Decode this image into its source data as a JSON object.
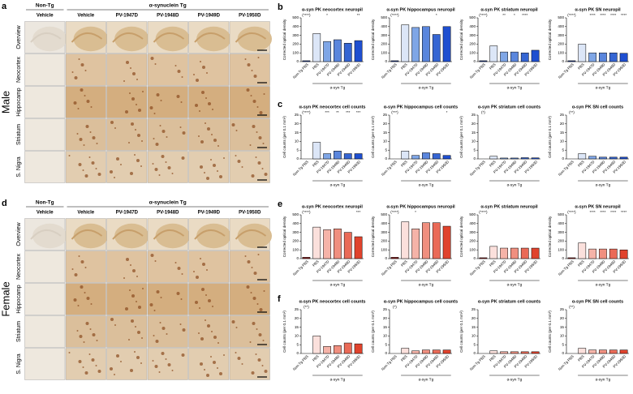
{
  "histology": [
    {
      "label": "a",
      "sex": "Male",
      "group_headers": [
        "Non-Tg",
        "α-synuclein Tg"
      ],
      "columns": [
        "Vehicle",
        "Vehicle",
        "PV-1947D",
        "PV-1948D",
        "PV-1949D",
        "PV-1950D"
      ],
      "rows": [
        "Overview",
        "Neocortex",
        "Hippocamp",
        "Striatum",
        "S. Nigra"
      ]
    },
    {
      "label": "d",
      "sex": "Female",
      "group_headers": [
        "Non-Tg",
        "α-synuclein Tg"
      ],
      "columns": [
        "Vehicle",
        "Vehicle",
        "PV-1947D",
        "PV-1948D",
        "PV-1949D",
        "PV-1950D"
      ],
      "rows": [
        "Overview",
        "Neocortex",
        "Hippocamp",
        "Striatum",
        "S. Nigra"
      ]
    }
  ],
  "chart_row_labels": [
    "b",
    "c",
    "e",
    "f"
  ],
  "chart_data": [
    {
      "type": "bar",
      "title": "α-syn PK neocortex neuropil",
      "ylabel": "Corrected optical density",
      "xlabel": "α-syn Tg",
      "categories": [
        "Non-Tg PBS",
        "PBS",
        "PV-1947D",
        "PV-1948D",
        "PV-1949D",
        "PV-1950D"
      ],
      "values": [
        10,
        320,
        230,
        250,
        210,
        240
      ],
      "annotations": [
        "(****)",
        null,
        "*",
        null,
        null,
        "**"
      ],
      "colors": [
        "#1f3a93",
        "#dce6f7",
        "#7fa6e6",
        "#5a86dd",
        "#3565d3",
        "#1f4fd0"
      ],
      "ylim": [
        0,
        500
      ],
      "yticks": [
        0,
        100,
        200,
        300,
        400,
        500
      ]
    },
    {
      "type": "bar",
      "title": "α-syn PK hippocampus neuropil",
      "ylabel": "Corrected optical density",
      "xlabel": "α-syn Tg",
      "categories": [
        "Non-Tg PBS",
        "PBS",
        "PV-1947D",
        "PV-1948D",
        "PV-1949D",
        "PV-1950D"
      ],
      "values": [
        10,
        420,
        390,
        400,
        310,
        400
      ],
      "annotations": [
        "(****)",
        null,
        null,
        null,
        "*",
        null
      ],
      "colors": [
        "#1f3a93",
        "#dce6f7",
        "#7fa6e6",
        "#5a86dd",
        "#3565d3",
        "#1f4fd0"
      ],
      "ylim": [
        0,
        500
      ],
      "yticks": [
        0,
        100,
        200,
        300,
        400,
        500
      ]
    },
    {
      "type": "bar",
      "title": "α-syn PK striatum neuropil",
      "ylabel": "Corrected optical density",
      "xlabel": "α-syn Tg",
      "categories": [
        "Non-Tg PBS",
        "PBS",
        "PV-1947D",
        "PV-1948D",
        "PV-1949D",
        "PV-1950D"
      ],
      "values": [
        10,
        180,
        110,
        110,
        100,
        130
      ],
      "annotations": [
        "(****)",
        null,
        "**",
        "*",
        "****",
        null
      ],
      "colors": [
        "#1f3a93",
        "#dce6f7",
        "#7fa6e6",
        "#5a86dd",
        "#3565d3",
        "#1f4fd0"
      ],
      "ylim": [
        0,
        500
      ],
      "yticks": [
        0,
        100,
        200,
        300,
        400,
        500
      ]
    },
    {
      "type": "bar",
      "title": "α-syn PK SN neuropil",
      "ylabel": "Corrected optical density",
      "xlabel": "α-syn Tg",
      "categories": [
        "Non-Tg PBS",
        "PBS",
        "PV-1947D",
        "PV-1948D",
        "PV-1949D",
        "PV-1950D"
      ],
      "values": [
        10,
        200,
        100,
        100,
        100,
        95
      ],
      "annotations": [
        "(****)",
        null,
        "****",
        "****",
        "****",
        "****"
      ],
      "colors": [
        "#1f3a93",
        "#dce6f7",
        "#7fa6e6",
        "#5a86dd",
        "#3565d3",
        "#1f4fd0"
      ],
      "ylim": [
        0,
        500
      ],
      "yticks": [
        0,
        100,
        200,
        300,
        400,
        500
      ]
    },
    {
      "type": "bar",
      "title": "α-syn PK neocortex cell counts",
      "ylabel": "Cell counts (per 0.1 mm²)",
      "xlabel": "α-syn Tg",
      "categories": [
        "Non-Tg PBS",
        "PBS",
        "PV-1947D",
        "PV-1948D",
        "PV-1949D",
        "PV-1950D"
      ],
      "values": [
        0,
        9.5,
        3,
        4.5,
        3,
        3
      ],
      "annotations": [
        "(****)",
        null,
        "***",
        "**",
        "***",
        "***"
      ],
      "colors": [
        "#1f3a93",
        "#dce6f7",
        "#7fa6e6",
        "#5a86dd",
        "#3565d3",
        "#1f4fd0"
      ],
      "ylim": [
        0,
        25
      ],
      "yticks": [
        0,
        5,
        10,
        15,
        20,
        25
      ]
    },
    {
      "type": "bar",
      "title": "α-syn PK hippocampus cell counts",
      "ylabel": "Cell counts (per 0.1 mm²)",
      "xlabel": "α-syn Tg",
      "categories": [
        "Non-Tg PBS",
        "PBS",
        "PV-1947D",
        "PV-1948D",
        "PV-1949D",
        "PV-1950D"
      ],
      "values": [
        0,
        4.5,
        2,
        3.5,
        3,
        2
      ],
      "annotations": [
        "(***)",
        null,
        null,
        null,
        null,
        "*"
      ],
      "colors": [
        "#1f3a93",
        "#dce6f7",
        "#7fa6e6",
        "#5a86dd",
        "#3565d3",
        "#1f4fd0"
      ],
      "ylim": [
        0,
        25
      ],
      "yticks": [
        0,
        5,
        10,
        15,
        20,
        25
      ]
    },
    {
      "type": "bar",
      "title": "α-syn PK striatum cell counts",
      "ylabel": "Cell counts (per 0.1 mm²)",
      "xlabel": "α-syn Tg",
      "categories": [
        "Non-Tg PBS",
        "PBS",
        "PV-1947D",
        "PV-1948D",
        "PV-1949D",
        "PV-1950D"
      ],
      "values": [
        0,
        1.5,
        0.5,
        0.5,
        0.7,
        0.6
      ],
      "annotations": [
        "(*)",
        null,
        null,
        null,
        null,
        null
      ],
      "colors": [
        "#1f3a93",
        "#dce6f7",
        "#7fa6e6",
        "#5a86dd",
        "#3565d3",
        "#1f4fd0"
      ],
      "ylim": [
        0,
        25
      ],
      "yticks": [
        0,
        5,
        10,
        15,
        20,
        25
      ]
    },
    {
      "type": "bar",
      "title": "α-syn PK SN cell counts",
      "ylabel": "Cell counts (per 0.1 mm²)",
      "xlabel": "α-syn Tg",
      "categories": [
        "Non-Tg PBS",
        "PBS",
        "PV-1947D",
        "PV-1948D",
        "PV-1949D",
        "PV-1950D"
      ],
      "values": [
        0,
        3,
        1.5,
        1,
        1,
        1
      ],
      "annotations": [
        "(**)",
        null,
        null,
        null,
        null,
        null
      ],
      "colors": [
        "#1f3a93",
        "#dce6f7",
        "#7fa6e6",
        "#5a86dd",
        "#3565d3",
        "#1f4fd0"
      ],
      "ylim": [
        0,
        25
      ],
      "yticks": [
        0,
        5,
        10,
        15,
        20,
        25
      ]
    },
    {
      "type": "bar",
      "title": "α-syn PK neocortex neuropil",
      "ylabel": "Corrected optical density",
      "xlabel": "α-syn Tg",
      "categories": [
        "Non-Tg PBS",
        "PBS",
        "PV-1947D",
        "PV-1948D",
        "PV-1949D",
        "PV-1950D"
      ],
      "values": [
        15,
        360,
        330,
        340,
        300,
        250
      ],
      "annotations": [
        "(****)",
        null,
        null,
        null,
        null,
        "***"
      ],
      "colors": [
        "#8b1a1a",
        "#fbe0dc",
        "#f5b3a8",
        "#f08f7f",
        "#ea6a57",
        "#e0432d"
      ],
      "ylim": [
        0,
        500
      ],
      "yticks": [
        0,
        100,
        200,
        300,
        400,
        500
      ]
    },
    {
      "type": "bar",
      "title": "α-syn PK hippocampus neuropil",
      "ylabel": "Corrected optical density",
      "xlabel": "α-syn Tg",
      "categories": [
        "Non-Tg PBS",
        "PBS",
        "PV-1947D",
        "PV-1948D",
        "PV-1949D",
        "PV-1950D"
      ],
      "values": [
        15,
        420,
        340,
        410,
        410,
        370
      ],
      "annotations": [
        "(****)",
        null,
        "*",
        null,
        null,
        null
      ],
      "colors": [
        "#8b1a1a",
        "#fbe0dc",
        "#f5b3a8",
        "#f08f7f",
        "#ea6a57",
        "#e0432d"
      ],
      "ylim": [
        0,
        500
      ],
      "yticks": [
        0,
        100,
        200,
        300,
        400,
        500
      ]
    },
    {
      "type": "bar",
      "title": "α-syn PK striatum neuropil",
      "ylabel": "Corrected optical density",
      "xlabel": "α-syn Tg",
      "categories": [
        "Non-Tg PBS",
        "PBS",
        "PV-1947D",
        "PV-1948D",
        "PV-1949D",
        "PV-1950D"
      ],
      "values": [
        10,
        140,
        120,
        120,
        120,
        120
      ],
      "annotations": [
        "(****)",
        null,
        null,
        null,
        null,
        null
      ],
      "colors": [
        "#8b1a1a",
        "#fbe0dc",
        "#f5b3a8",
        "#f08f7f",
        "#ea6a57",
        "#e0432d"
      ],
      "ylim": [
        0,
        500
      ],
      "yticks": [
        0,
        100,
        200,
        300,
        400,
        500
      ]
    },
    {
      "type": "bar",
      "title": "α-syn PK SN neuropil",
      "ylabel": "Corrected optical density",
      "xlabel": "α-syn Tg",
      "categories": [
        "Non-Tg PBS",
        "PBS",
        "PV-1947D",
        "PV-1948D",
        "PV-1949D",
        "PV-1950D"
      ],
      "values": [
        10,
        180,
        110,
        110,
        110,
        100
      ],
      "annotations": [
        "(****)",
        null,
        "****",
        "****",
        "****",
        "****"
      ],
      "colors": [
        "#8b1a1a",
        "#fbe0dc",
        "#f5b3a8",
        "#f08f7f",
        "#ea6a57",
        "#e0432d"
      ],
      "ylim": [
        0,
        500
      ],
      "yticks": [
        0,
        100,
        200,
        300,
        400,
        500
      ]
    },
    {
      "type": "bar",
      "title": "α-syn PK neocortex cell counts",
      "ylabel": "Cell counts (per 0.1 mm²)",
      "xlabel": "α-syn Tg",
      "categories": [
        "Non-Tg PBS",
        "PBS",
        "PV-1947D",
        "PV-1948D",
        "PV-1949D",
        "PV-1950D"
      ],
      "values": [
        0,
        10,
        4,
        4.5,
        6,
        5.5
      ],
      "annotations": [
        "(**)",
        null,
        null,
        null,
        null,
        null
      ],
      "colors": [
        "#8b1a1a",
        "#fbe0dc",
        "#f5b3a8",
        "#f08f7f",
        "#ea6a57",
        "#e0432d"
      ],
      "ylim": [
        0,
        25
      ],
      "yticks": [
        0,
        5,
        10,
        15,
        20,
        25
      ]
    },
    {
      "type": "bar",
      "title": "α-syn PK hippocampus cell counts",
      "ylabel": "Cell counts (per 0.1 mm²)",
      "xlabel": "α-syn Tg",
      "categories": [
        "Non-Tg PBS",
        "PBS",
        "PV-1947D",
        "PV-1948D",
        "PV-1949D",
        "PV-1950D"
      ],
      "values": [
        0,
        3,
        1.5,
        2,
        2,
        2
      ],
      "annotations": [
        "(*)",
        null,
        null,
        null,
        null,
        null
      ],
      "colors": [
        "#8b1a1a",
        "#fbe0dc",
        "#f5b3a8",
        "#f08f7f",
        "#ea6a57",
        "#e0432d"
      ],
      "ylim": [
        0,
        25
      ],
      "yticks": [
        0,
        5,
        10,
        15,
        20,
        25
      ]
    },
    {
      "type": "bar",
      "title": "α-syn PK striatum cell counts",
      "ylabel": "Cell counts (per 0.1 mm²)",
      "xlabel": "α-syn Tg",
      "categories": [
        "Non-Tg PBS",
        "PBS",
        "PV-1947D",
        "PV-1948D",
        "PV-1949D",
        "PV-1950D"
      ],
      "values": [
        0,
        1.5,
        1,
        1,
        1,
        1
      ],
      "annotations": [
        null,
        null,
        null,
        null,
        null,
        null
      ],
      "colors": [
        "#8b1a1a",
        "#fbe0dc",
        "#f5b3a8",
        "#f08f7f",
        "#ea6a57",
        "#e0432d"
      ],
      "ylim": [
        0,
        25
      ],
      "yticks": [
        0,
        5,
        10,
        15,
        20,
        25
      ]
    },
    {
      "type": "bar",
      "title": "α-syn PK SN cell counts",
      "ylabel": "Cell counts (per 0.1 mm²)",
      "xlabel": "α-syn Tg",
      "categories": [
        "Non-Tg PBS",
        "PBS",
        "PV-1947D",
        "PV-1948D",
        "PV-1949D",
        "PV-1950D"
      ],
      "values": [
        0,
        3,
        2,
        2,
        2,
        2
      ],
      "annotations": [
        "(**)",
        null,
        null,
        null,
        null,
        null
      ],
      "colors": [
        "#8b1a1a",
        "#fbe0dc",
        "#f5b3a8",
        "#f08f7f",
        "#ea6a57",
        "#e0432d"
      ],
      "ylim": [
        0,
        25
      ],
      "yticks": [
        0,
        5,
        10,
        15,
        20,
        25
      ]
    }
  ]
}
